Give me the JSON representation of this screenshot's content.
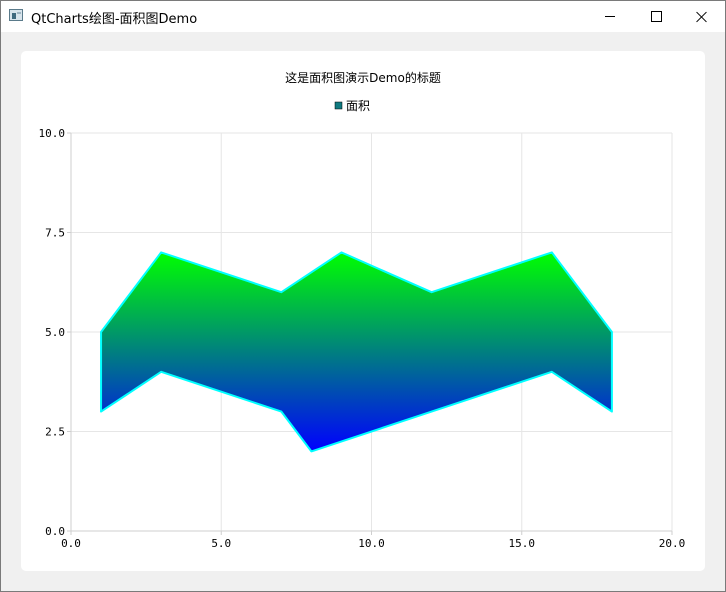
{
  "window": {
    "title": "QtCharts绘图-面积图Demo",
    "icon": "app-window-icon",
    "controls": {
      "minimize": "minimize-icon",
      "maximize": "maximize-icon",
      "close": "close-icon"
    }
  },
  "chart_data": {
    "type": "area",
    "title": "这是面积图演示Demo的标题",
    "legend": {
      "position": "top-center",
      "entries": [
        "面积"
      ]
    },
    "xlabel": "",
    "ylabel": "",
    "xlim": [
      0,
      20
    ],
    "ylim": [
      0,
      10
    ],
    "grid": true,
    "x_ticks": [
      "0.0",
      "5.0",
      "10.0",
      "15.0",
      "20.0"
    ],
    "y_ticks": [
      "0.0",
      "2.5",
      "5.0",
      "7.5",
      "10.0"
    ],
    "x_tick_values": [
      0,
      5,
      10,
      15,
      20
    ],
    "y_tick_values": [
      0,
      2.5,
      5,
      7.5,
      10
    ],
    "series": [
      {
        "name": "面积",
        "upper": [
          [
            1,
            5
          ],
          [
            3,
            7
          ],
          [
            7,
            6
          ],
          [
            9,
            7
          ],
          [
            12,
            6
          ],
          [
            16,
            7
          ],
          [
            18,
            5
          ]
        ],
        "lower": [
          [
            1,
            3
          ],
          [
            3,
            4
          ],
          [
            7,
            3
          ],
          [
            8,
            2
          ],
          [
            12,
            3
          ],
          [
            16,
            4
          ],
          [
            18,
            3
          ]
        ],
        "border_color": "#00ffff",
        "gradient_top": "#00ff00",
        "gradient_bottom": "#0000ff"
      }
    ],
    "grid_color": "#e6e6e6",
    "axis_color": "#cfcfcf"
  }
}
